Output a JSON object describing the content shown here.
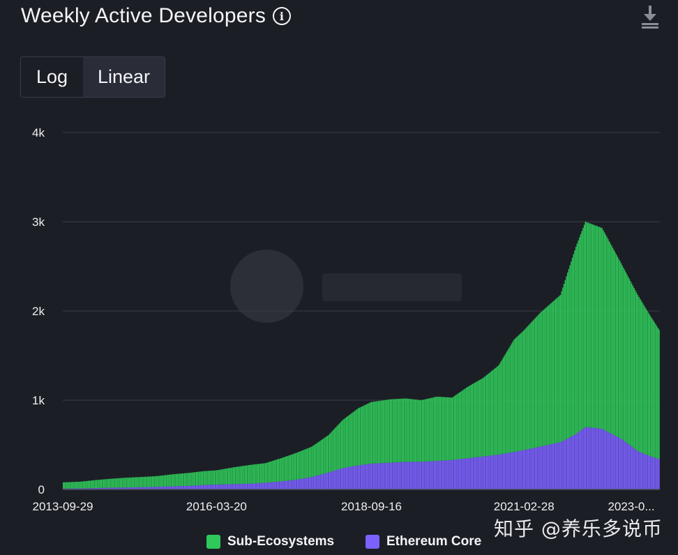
{
  "header": {
    "title": "Weekly Active Developers",
    "info_icon": "info-icon",
    "download_icon": "download-icon"
  },
  "scale_toggle": {
    "options": [
      "Log",
      "Linear"
    ],
    "selected": "Linear"
  },
  "watermark": "知乎 @养乐多说币",
  "colors": {
    "background": "#1c1e26",
    "grid": "#3a3d48",
    "sub_ecosystems": "#2fc85a",
    "ethereum_core": "#7b61ff",
    "text": "#f0f1f5"
  },
  "chart_data": {
    "type": "bar",
    "stacked": true,
    "title": "Weekly Active Developers",
    "xlabel": "",
    "ylabel": "",
    "ylim": [
      0,
      4000
    ],
    "yticks": [
      0,
      1000,
      2000,
      3000,
      4000
    ],
    "ytick_labels": [
      "0",
      "1k",
      "2k",
      "3k",
      "4k"
    ],
    "xtick_labels": [
      "2013-09-29",
      "2016-03-20",
      "2018-09-16",
      "2021-02-28",
      "2023-0..."
    ],
    "x_range": [
      "2013-09-29",
      "2023-05-07"
    ],
    "grid": true,
    "legend_position": "bottom",
    "series": [
      {
        "name": "Sub-Ecosystems",
        "color": "#2fc85a",
        "points": [
          [
            "2013-09-29",
            70
          ],
          [
            "2014-01-05",
            75
          ],
          [
            "2014-04-06",
            90
          ],
          [
            "2014-07-06",
            100
          ],
          [
            "2014-10-05",
            110
          ],
          [
            "2015-01-04",
            115
          ],
          [
            "2015-04-05",
            120
          ],
          [
            "2015-07-05",
            135
          ],
          [
            "2015-10-04",
            145
          ],
          [
            "2016-01-03",
            155
          ],
          [
            "2016-03-20",
            160
          ],
          [
            "2016-07-03",
            190
          ],
          [
            "2016-10-02",
            210
          ],
          [
            "2017-01-01",
            220
          ],
          [
            "2017-04-02",
            260
          ],
          [
            "2017-07-02",
            300
          ],
          [
            "2017-10-01",
            340
          ],
          [
            "2018-01-07",
            420
          ],
          [
            "2018-04-01",
            540
          ],
          [
            "2018-07-01",
            640
          ],
          [
            "2018-09-16",
            690
          ],
          [
            "2019-01-06",
            710
          ],
          [
            "2019-04-07",
            710
          ],
          [
            "2019-07-07",
            690
          ],
          [
            "2019-10-06",
            720
          ],
          [
            "2020-01-05",
            700
          ],
          [
            "2020-04-05",
            800
          ],
          [
            "2020-07-05",
            880
          ],
          [
            "2020-10-04",
            1000
          ],
          [
            "2021-01-03",
            1260
          ],
          [
            "2021-02-28",
            1340
          ],
          [
            "2021-06-06",
            1500
          ],
          [
            "2021-10-03",
            1650
          ],
          [
            "2022-01-02",
            2100
          ],
          [
            "2022-02-27",
            2300
          ],
          [
            "2022-06-05",
            2250
          ],
          [
            "2022-10-02",
            1950
          ],
          [
            "2023-01-01",
            1750
          ],
          [
            "2023-03-05",
            1600
          ],
          [
            "2023-05-07",
            1450
          ]
        ]
      },
      {
        "name": "Ethereum Core",
        "color": "#7b61ff",
        "points": [
          [
            "2013-09-29",
            10
          ],
          [
            "2014-01-05",
            12
          ],
          [
            "2014-04-06",
            15
          ],
          [
            "2014-07-06",
            20
          ],
          [
            "2014-10-05",
            22
          ],
          [
            "2015-01-04",
            25
          ],
          [
            "2015-04-05",
            30
          ],
          [
            "2015-07-05",
            35
          ],
          [
            "2015-10-04",
            40
          ],
          [
            "2016-01-03",
            50
          ],
          [
            "2016-03-20",
            55
          ],
          [
            "2016-07-03",
            60
          ],
          [
            "2016-10-02",
            65
          ],
          [
            "2017-01-01",
            75
          ],
          [
            "2017-04-02",
            90
          ],
          [
            "2017-07-02",
            110
          ],
          [
            "2017-10-01",
            140
          ],
          [
            "2018-01-07",
            190
          ],
          [
            "2018-04-01",
            240
          ],
          [
            "2018-07-01",
            270
          ],
          [
            "2018-09-16",
            290
          ],
          [
            "2019-01-06",
            300
          ],
          [
            "2019-04-07",
            310
          ],
          [
            "2019-07-07",
            310
          ],
          [
            "2019-10-06",
            320
          ],
          [
            "2020-01-05",
            330
          ],
          [
            "2020-04-05",
            350
          ],
          [
            "2020-07-05",
            370
          ],
          [
            "2020-10-04",
            390
          ],
          [
            "2021-01-03",
            420
          ],
          [
            "2021-02-28",
            440
          ],
          [
            "2021-06-06",
            480
          ],
          [
            "2021-10-03",
            530
          ],
          [
            "2022-01-02",
            620
          ],
          [
            "2022-02-27",
            700
          ],
          [
            "2022-06-05",
            680
          ],
          [
            "2022-10-02",
            560
          ],
          [
            "2023-01-01",
            430
          ],
          [
            "2023-03-05",
            380
          ],
          [
            "2023-05-07",
            340
          ]
        ]
      }
    ]
  }
}
